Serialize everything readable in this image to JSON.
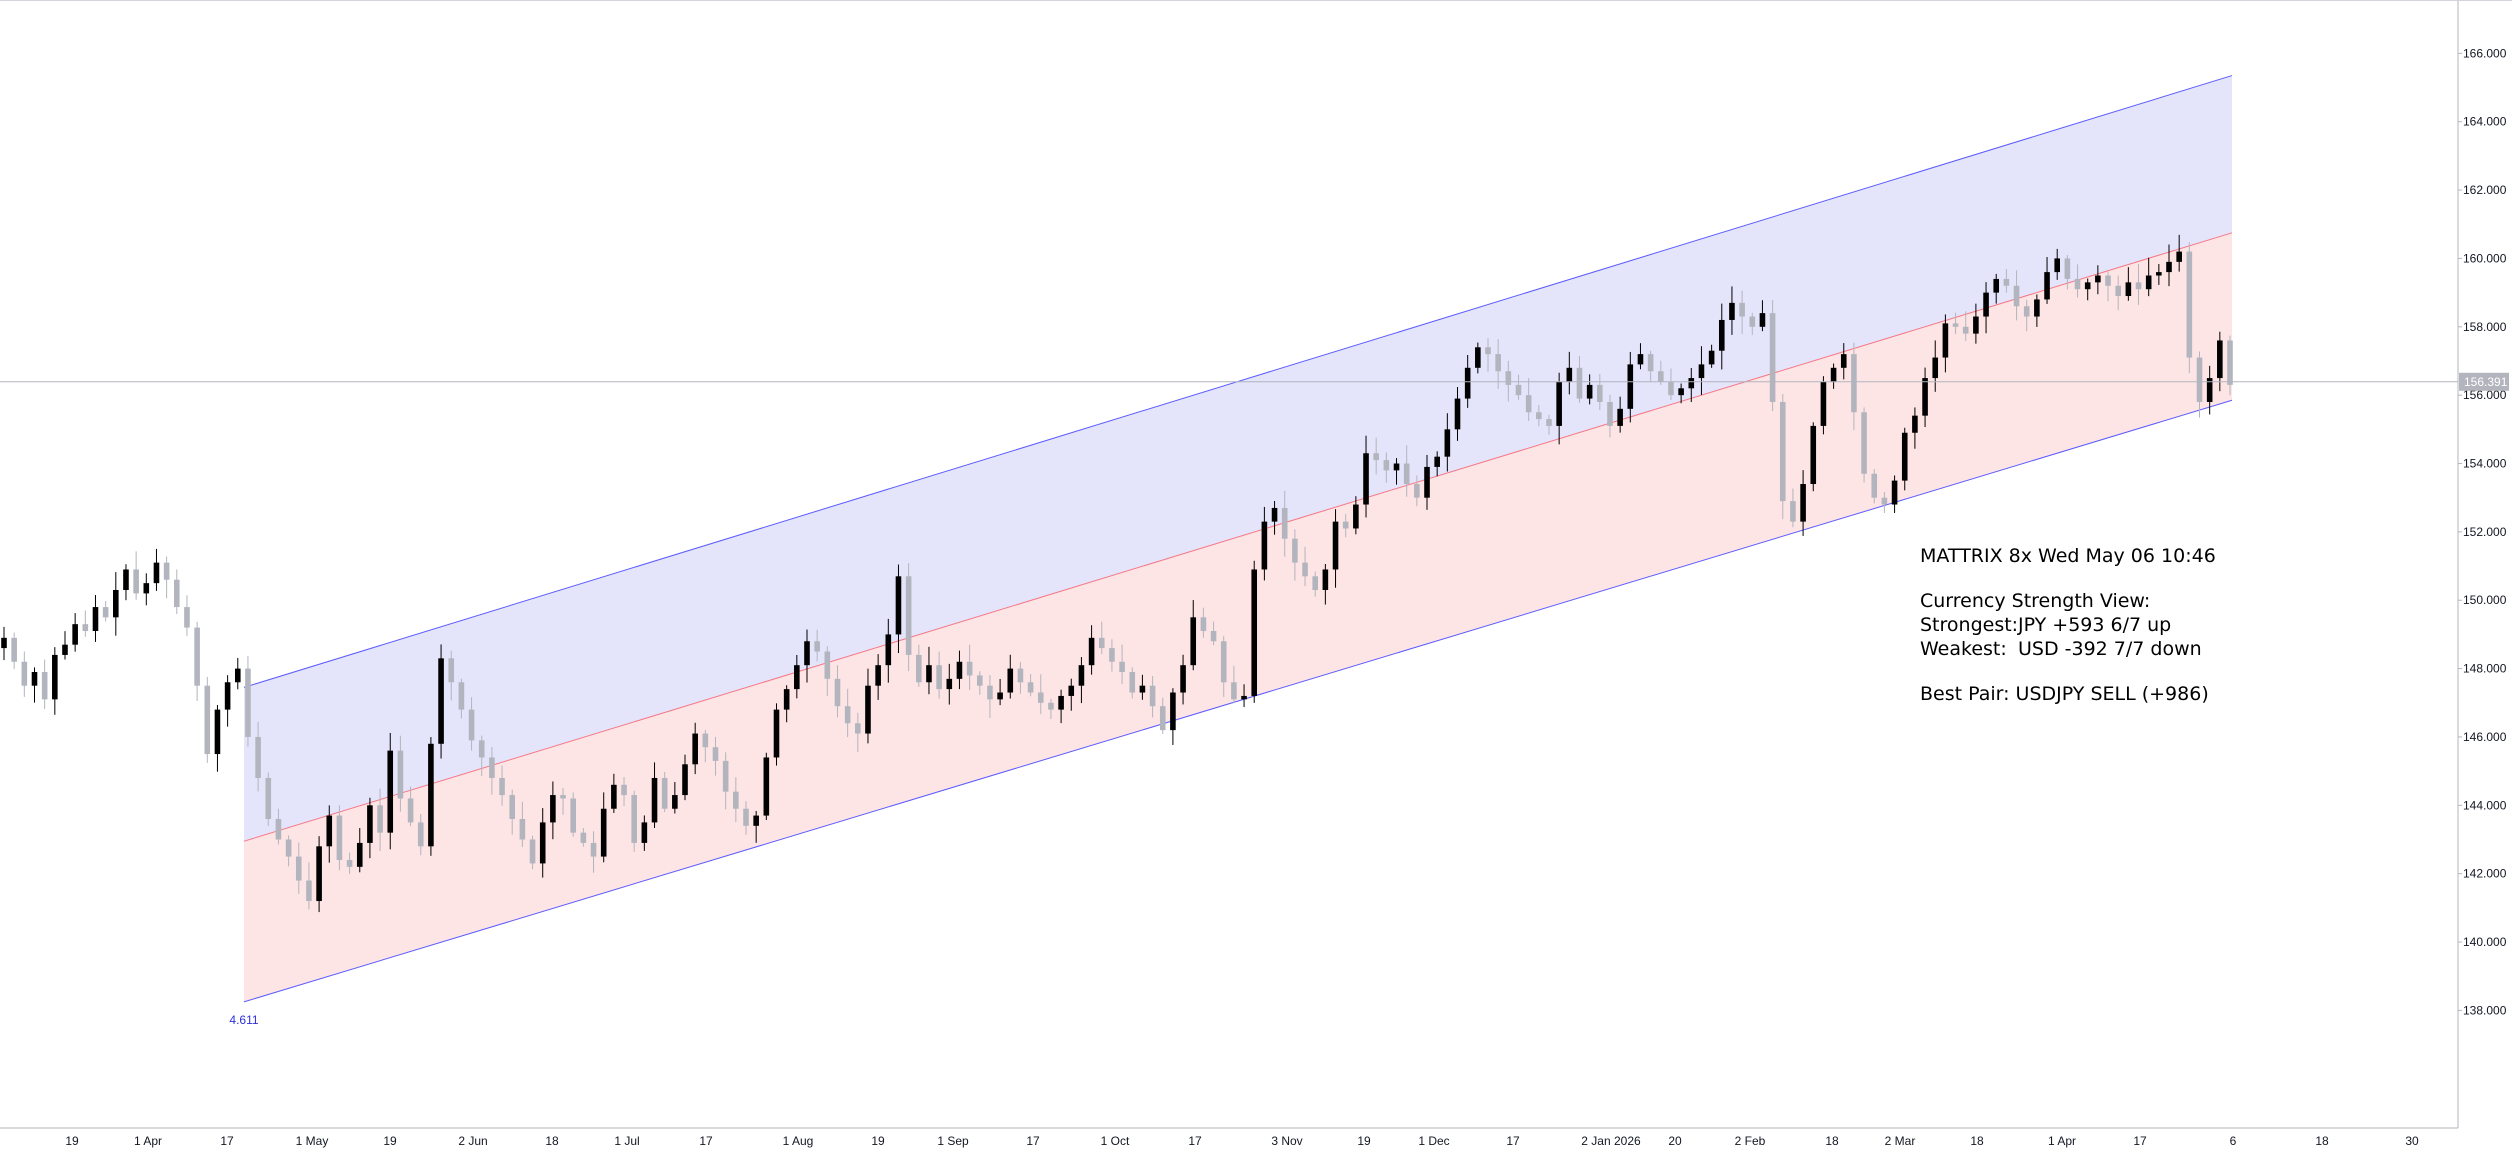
{
  "chart_data": {
    "type": "candlestick",
    "y_axis": {
      "range": [
        136.9,
        166.8
      ],
      "ticks": [
        "166.000",
        "164.000",
        "162.000",
        "160.000",
        "158.000",
        "156.000",
        "154.000",
        "152.000",
        "150.000",
        "148.000",
        "146.000",
        "144.000",
        "142.000",
        "140.000",
        "138.000"
      ],
      "position": "right"
    },
    "x_axis": {
      "ticks": [
        "19",
        "1 Apr",
        "17",
        "1 May",
        "19",
        "2 Jun",
        "18",
        "1 Jul",
        "17",
        "1 Aug",
        "19",
        "1 Sep",
        "17",
        "1 Oct",
        "17",
        "3 Nov",
        "19",
        "1 Dec",
        "17",
        "2 Jan 2026",
        "20",
        "2 Feb",
        "18",
        "2 Mar",
        "18",
        "1 Apr",
        "17",
        "6",
        "18",
        "30"
      ]
    },
    "current_price": {
      "label": "156.391",
      "value": 156.391,
      "color": "#b2b5be"
    },
    "channel": {
      "start_label": "4.611",
      "upper_start": 147.45,
      "upper_end": 165.35,
      "mid_start": 142.95,
      "mid_end": 160.75,
      "lower_start": 138.25,
      "lower_end": 155.85,
      "upper_fill": "#e4e4fb",
      "lower_fill": "#fde4e5",
      "upper_line": "#5b5bff",
      "mid_line": "#f77784",
      "lower_line": "#5b5bff"
    },
    "candles": [
      148.9,
      148.2,
      147.5,
      147.9,
      147.1,
      148.4,
      148.7,
      149.3,
      149.1,
      149.8,
      149.5,
      150.3,
      150.9,
      150.2,
      150.5,
      151.1,
      150.6,
      149.8,
      149.2,
      147.5,
      145.5,
      146.8,
      147.6,
      148.0,
      146.0,
      144.8,
      143.6,
      143.0,
      142.5,
      141.8,
      141.2,
      142.8,
      143.7,
      142.4,
      142.2,
      142.9,
      144.0,
      143.2,
      145.6,
      144.2,
      143.5,
      142.8,
      145.8,
      148.3,
      147.6,
      146.8,
      145.9,
      145.4,
      144.8,
      144.3,
      143.6,
      143.0,
      142.3,
      143.5,
      144.3,
      144.2,
      143.2,
      142.9,
      142.5,
      143.9,
      144.6,
      144.3,
      142.9,
      143.5,
      144.8,
      143.9,
      144.3,
      145.2,
      146.1,
      145.7,
      145.3,
      144.4,
      143.9,
      143.4,
      143.7,
      145.4,
      146.8,
      147.4,
      148.1,
      148.8,
      148.5,
      147.7,
      146.9,
      146.4,
      146.1,
      147.5,
      148.1,
      149.0,
      150.7,
      148.4,
      147.6,
      148.1,
      147.4,
      147.7,
      148.2,
      147.8,
      147.5,
      147.1,
      147.3,
      148.0,
      147.6,
      147.3,
      147.0,
      146.8,
      147.2,
      147.5,
      148.1,
      148.9,
      148.6,
      148.2,
      147.9,
      147.3,
      147.5,
      146.9,
      146.2,
      147.3,
      148.1,
      149.5,
      149.1,
      148.8,
      147.6,
      147.1,
      147.2,
      150.9,
      152.3,
      152.7,
      151.8,
      151.1,
      150.7,
      150.3,
      150.9,
      152.3,
      152.1,
      152.8,
      154.3,
      154.1,
      153.8,
      154.0,
      153.4,
      153.0,
      153.9,
      154.2,
      155.0,
      155.9,
      156.8,
      157.4,
      157.2,
      156.7,
      156.3,
      156.0,
      155.5,
      155.3,
      155.1,
      156.4,
      156.8,
      155.9,
      156.3,
      155.8,
      155.1,
      155.6,
      156.9,
      157.2,
      156.7,
      156.4,
      156.0,
      156.2,
      156.5,
      156.9,
      157.3,
      158.2,
      158.7,
      158.3,
      158.0,
      158.4,
      155.8,
      152.9,
      152.3,
      153.4,
      155.1,
      156.4,
      156.8,
      157.2,
      155.5,
      153.7,
      153.0,
      152.8,
      153.5,
      154.9,
      155.4,
      156.5,
      157.1,
      158.1,
      158.0,
      157.8,
      158.3,
      159.0,
      159.4,
      159.2,
      158.6,
      158.3,
      158.8,
      159.6,
      160.0,
      159.4,
      159.1,
      159.3,
      159.5,
      159.2,
      158.9,
      159.3,
      159.1,
      159.5,
      159.6,
      159.9,
      160.2,
      157.1,
      155.8,
      156.5,
      157.6,
      156.3
    ]
  },
  "annotation": {
    "title": "MATTRIX 8x Wed May 06 10:46",
    "section": "Currency Strength View:",
    "strongest_label": "Strongest:",
    "strongest_value": "JPY +593 6/7 up",
    "weakest_label": "Weakest:",
    "weakest_value": "USD -392 7/7 down",
    "best_pair": "Best Pair: USDJPY SELL (+986)"
  },
  "colors": {
    "bull": "#000000",
    "bear": "#b2b5be",
    "grid": "#e0e3eb",
    "axis": "#131722"
  }
}
